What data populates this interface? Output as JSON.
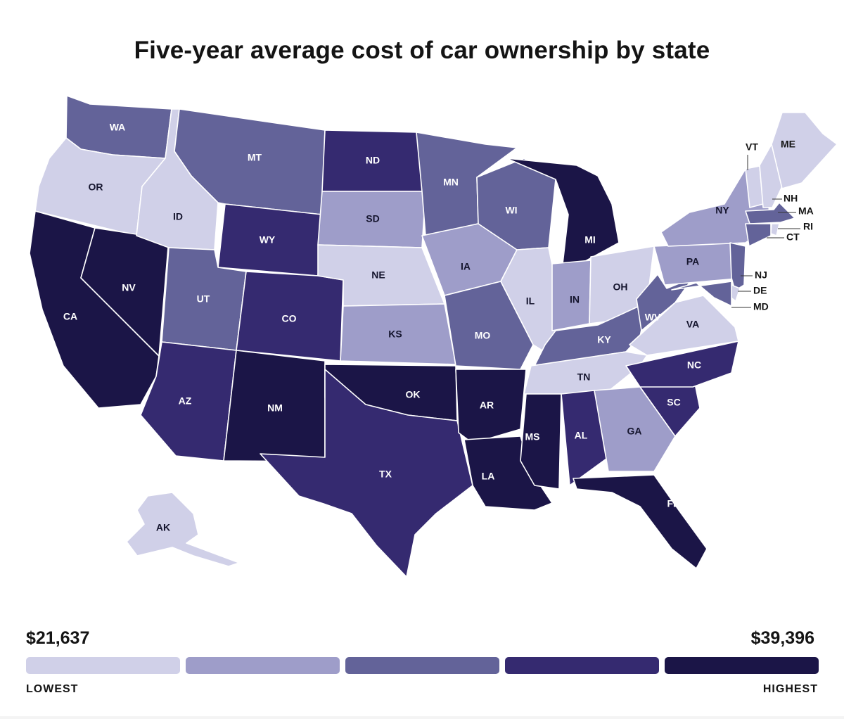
{
  "title": "Five-year average cost of car ownership by state",
  "legend": {
    "min_value": "$21,637",
    "max_value": "$39,396",
    "low_label": "LOWEST",
    "high_label": "HIGHEST",
    "colors": [
      "#d0d0e8",
      "#9e9dc9",
      "#636399",
      "#352a70",
      "#1b1547"
    ]
  },
  "states": [
    {
      "id": "WA",
      "label": "WA",
      "tier": 2
    },
    {
      "id": "OR",
      "label": "OR",
      "tier": 0
    },
    {
      "id": "CA",
      "label": "CA",
      "tier": 4
    },
    {
      "id": "NV",
      "label": "NV",
      "tier": 4
    },
    {
      "id": "ID",
      "label": "ID",
      "tier": 0
    },
    {
      "id": "MT",
      "label": "MT",
      "tier": 2
    },
    {
      "id": "WY",
      "label": "WY",
      "tier": 3
    },
    {
      "id": "UT",
      "label": "UT",
      "tier": 2
    },
    {
      "id": "AZ",
      "label": "AZ",
      "tier": 3
    },
    {
      "id": "CO",
      "label": "CO",
      "tier": 3
    },
    {
      "id": "NM",
      "label": "NM",
      "tier": 4
    },
    {
      "id": "ND",
      "label": "ND",
      "tier": 3
    },
    {
      "id": "SD",
      "label": "SD",
      "tier": 1
    },
    {
      "id": "NE",
      "label": "NE",
      "tier": 0
    },
    {
      "id": "KS",
      "label": "KS",
      "tier": 1
    },
    {
      "id": "OK",
      "label": "OK",
      "tier": 4
    },
    {
      "id": "TX",
      "label": "TX",
      "tier": 3
    },
    {
      "id": "MN",
      "label": "MN",
      "tier": 2
    },
    {
      "id": "IA",
      "label": "IA",
      "tier": 1
    },
    {
      "id": "MO",
      "label": "MO",
      "tier": 2
    },
    {
      "id": "AR",
      "label": "AR",
      "tier": 4
    },
    {
      "id": "LA",
      "label": "LA",
      "tier": 4
    },
    {
      "id": "WI",
      "label": "WI",
      "tier": 2
    },
    {
      "id": "IL",
      "label": "IL",
      "tier": 0
    },
    {
      "id": "MI",
      "label": "MI",
      "tier": 4
    },
    {
      "id": "IN",
      "label": "IN",
      "tier": 1
    },
    {
      "id": "OH",
      "label": "OH",
      "tier": 0
    },
    {
      "id": "KY",
      "label": "KY",
      "tier": 2
    },
    {
      "id": "TN",
      "label": "TN",
      "tier": 0
    },
    {
      "id": "MS",
      "label": "MS",
      "tier": 4
    },
    {
      "id": "AL",
      "label": "AL",
      "tier": 3
    },
    {
      "id": "GA",
      "label": "GA",
      "tier": 1
    },
    {
      "id": "FL",
      "label": "FL",
      "tier": 4
    },
    {
      "id": "SC",
      "label": "SC",
      "tier": 3
    },
    {
      "id": "NC",
      "label": "NC",
      "tier": 3
    },
    {
      "id": "VA",
      "label": "VA",
      "tier": 0
    },
    {
      "id": "WV",
      "label": "WV",
      "tier": 2
    },
    {
      "id": "PA",
      "label": "PA",
      "tier": 1
    },
    {
      "id": "NY",
      "label": "NY",
      "tier": 1
    },
    {
      "id": "VT",
      "label": "VT",
      "tier": 0
    },
    {
      "id": "NH",
      "label": "NH",
      "tier": 0
    },
    {
      "id": "ME",
      "label": "ME",
      "tier": 0
    },
    {
      "id": "MA",
      "label": "MA",
      "tier": 2
    },
    {
      "id": "RI",
      "label": "RI",
      "tier": 0
    },
    {
      "id": "CT",
      "label": "CT",
      "tier": 2
    },
    {
      "id": "NJ",
      "label": "NJ",
      "tier": 2
    },
    {
      "id": "DE",
      "label": "DE",
      "tier": 0
    },
    {
      "id": "MD",
      "label": "MD",
      "tier": 2
    },
    {
      "id": "AK",
      "label": "AK",
      "tier": 0
    }
  ]
}
